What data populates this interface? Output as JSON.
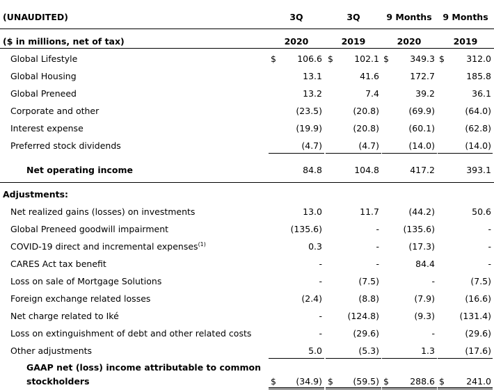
{
  "header": {
    "unaudited": "(UNAUDITED)",
    "units": "($ in millions, net of tax)",
    "columns": [
      {
        "period": "3Q",
        "year": "2020"
      },
      {
        "period": "3Q",
        "year": "2019"
      },
      {
        "period": "9 Months",
        "year": "2020"
      },
      {
        "period": "9 Months",
        "year": "2019"
      }
    ]
  },
  "currency_symbol": "$",
  "rows": [
    {
      "label": "Global Lifestyle",
      "values": [
        "106.6",
        "102.1",
        "349.3",
        "312.0"
      ]
    },
    {
      "label": "Global Housing",
      "values": [
        "13.1",
        "41.6",
        "172.7",
        "185.8"
      ]
    },
    {
      "label": "Global Preneed",
      "values": [
        "13.2",
        "7.4",
        "39.2",
        "36.1"
      ]
    },
    {
      "label": "Corporate and other",
      "values": [
        "(23.5)",
        "(20.8)",
        "(69.9)",
        "(64.0)"
      ]
    },
    {
      "label": "Interest expense",
      "values": [
        "(19.9)",
        "(20.8)",
        "(60.1)",
        "(62.8)"
      ]
    },
    {
      "label": "Preferred stock dividends",
      "values": [
        "(4.7)",
        "(4.7)",
        "(14.0)",
        "(14.0)"
      ]
    }
  ],
  "net_operating_income": {
    "label": "Net operating income",
    "values": [
      "84.8",
      "104.8",
      "417.2",
      "393.1"
    ]
  },
  "adjustments_heading": "Adjustments:",
  "adjustments": [
    {
      "label": "Net realized gains (losses) on investments",
      "values": [
        "13.0",
        "11.7",
        "(44.2)",
        "50.6"
      ]
    },
    {
      "label": "Global Preneed goodwill impairment",
      "values": [
        "(135.6)",
        "-",
        "(135.6)",
        "-"
      ]
    },
    {
      "label": "COVID-19 direct and incremental expenses",
      "footnote": "(1)",
      "values": [
        "0.3",
        "-",
        "(17.3)",
        "-"
      ]
    },
    {
      "label": "CARES Act tax benefit",
      "values": [
        "-",
        "-",
        "84.4",
        "-"
      ]
    },
    {
      "label": "Loss on sale of Mortgage Solutions",
      "values": [
        "-",
        "(7.5)",
        "-",
        "(7.5)"
      ]
    },
    {
      "label": "Foreign exchange related losses",
      "values": [
        "(2.4)",
        "(8.8)",
        "(7.9)",
        "(16.6)"
      ]
    },
    {
      "label": "Net charge related to Iké",
      "values": [
        "-",
        "(124.8)",
        "(9.3)",
        "(131.4)"
      ]
    },
    {
      "label": "Loss on extinguishment of debt and other related costs",
      "values": [
        "-",
        "(29.6)",
        "-",
        "(29.6)"
      ]
    },
    {
      "label": "Other adjustments",
      "values": [
        "5.0",
        "(5.3)",
        "1.3",
        "(17.6)"
      ]
    }
  ],
  "gaap": {
    "label_line1": "GAAP net (loss) income attributable to common",
    "label_line2": "stockholders",
    "values": [
      "(34.9)",
      "(59.5)",
      "288.6",
      "241.0"
    ]
  }
}
